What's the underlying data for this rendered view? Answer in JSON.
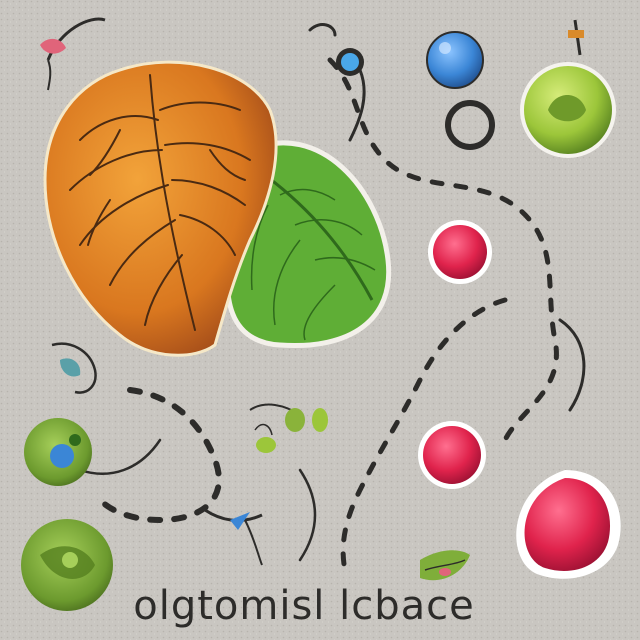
{
  "scene": {
    "caption": "olgtomisl lcbace",
    "palette": {
      "background": "#c9c6c1",
      "ink": "#2d2c2a",
      "orange_leaf": "#e8922a",
      "green_leaf": "#5fae36",
      "red_blob": "#e0234c",
      "blue_dot": "#3b86d6",
      "lime_orb": "#9cc63a"
    }
  }
}
